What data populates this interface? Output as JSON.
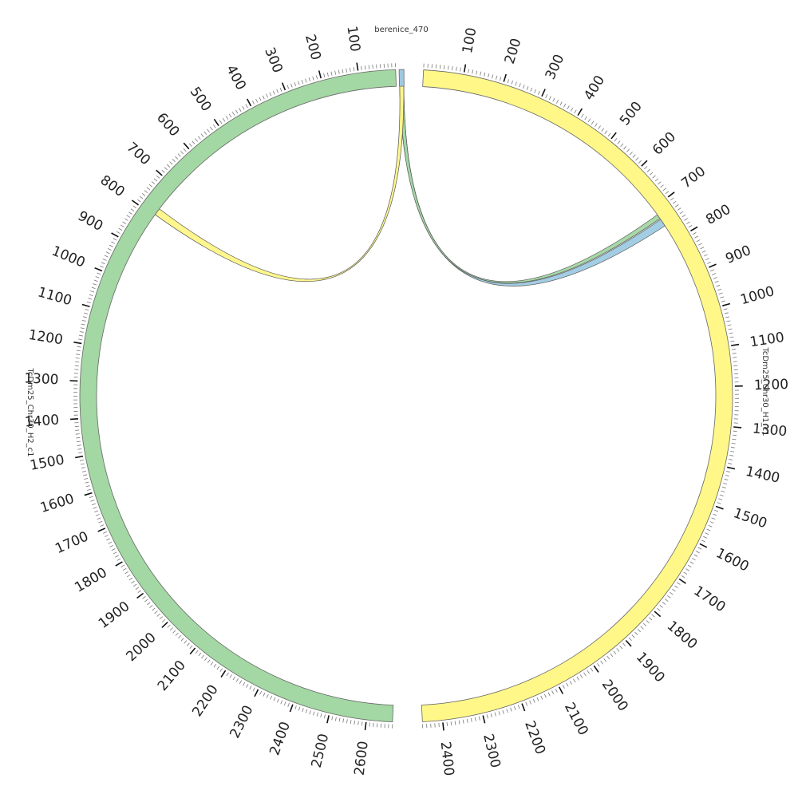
{
  "diagram": {
    "type": "circos",
    "segments": [
      {
        "id": "h1",
        "name": "TcDm25_Chr30_H1_c1",
        "length": 2450,
        "color": "#fff788",
        "tick_labels": [
          "100",
          "200",
          "300",
          "400",
          "500",
          "600",
          "700",
          "800",
          "900",
          "1000",
          "1100",
          "1200",
          "1300",
          "1400",
          "1500",
          "1600",
          "1700",
          "1800",
          "1900",
          "2000",
          "2100",
          "2200",
          "2300",
          "2400"
        ]
      },
      {
        "id": "h2",
        "name": "TcDm25_Chr30_H2_c1",
        "length": 2670,
        "color": "#a3d7a3",
        "tick_labels": [
          "100",
          "200",
          "300",
          "400",
          "500",
          "600",
          "700",
          "800",
          "900",
          "1000",
          "1100",
          "1200",
          "1300",
          "1400",
          "1500",
          "1600",
          "1700",
          "1800",
          "1900",
          "2000",
          "2100",
          "2200",
          "2300",
          "2400",
          "2500",
          "2600"
        ]
      },
      {
        "id": "b470",
        "name": "berenice_470",
        "length": 40,
        "color": "#9ecae1",
        "tick_labels": []
      }
    ],
    "links": [
      {
        "source": "b470",
        "target": "h1",
        "target_range": [
          735,
          755
        ],
        "color": "#9ecae1"
      },
      {
        "source": "b470",
        "target": "h1",
        "target_range": [
          720,
          732
        ],
        "color": "#a3d7a3"
      },
      {
        "source": "b470",
        "target": "h2",
        "target_range": [
          775,
          795
        ],
        "color": "#fff788"
      }
    ]
  }
}
